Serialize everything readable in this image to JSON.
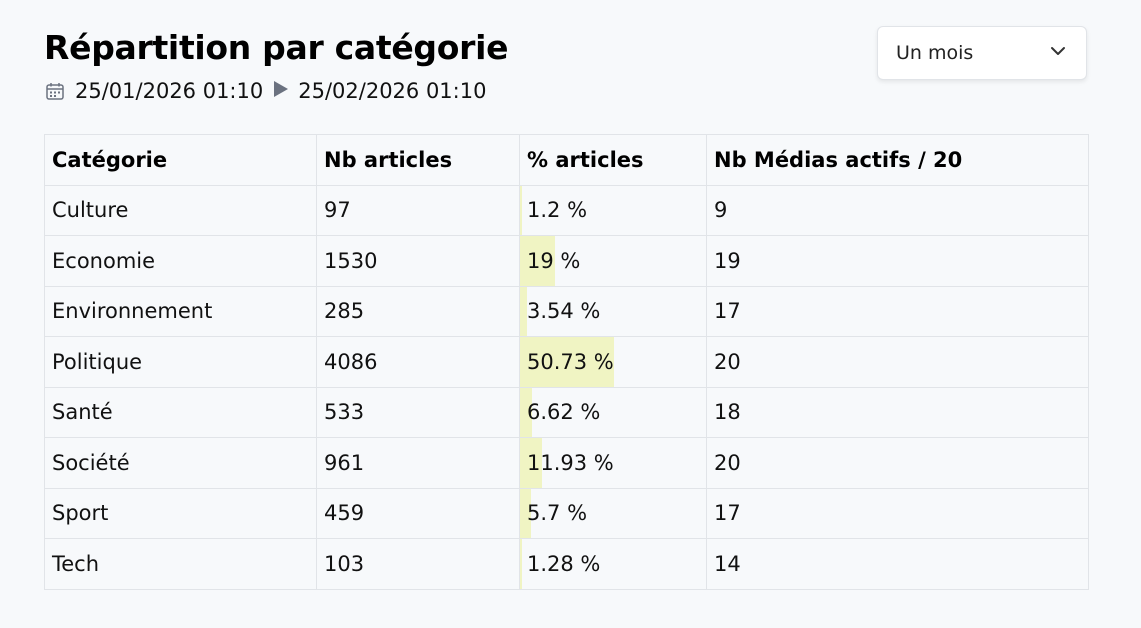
{
  "header": {
    "title": "Répartition par catégorie",
    "date_start": "25/01/2026 01:10",
    "date_end": "25/02/2026 01:10",
    "calendar_icon": "calendar-icon",
    "arrow_icon": "play-arrow-icon"
  },
  "period_select": {
    "value": "Un mois",
    "icon": "chevron-down-icon"
  },
  "table": {
    "columns": [
      "Catégorie",
      "Nb articles",
      "% articles",
      "Nb Médias actifs / 20"
    ],
    "bar_color": "#f0f4c3",
    "rows": [
      {
        "category": "Culture",
        "count": "97",
        "pct": 1.2,
        "pct_label": "1.2 %",
        "media": "9"
      },
      {
        "category": "Economie",
        "count": "1530",
        "pct": 19,
        "pct_label": "19 %",
        "media": "19"
      },
      {
        "category": "Environnement",
        "count": "285",
        "pct": 3.54,
        "pct_label": "3.54 %",
        "media": "17"
      },
      {
        "category": "Politique",
        "count": "4086",
        "pct": 50.73,
        "pct_label": "50.73 %",
        "media": "20"
      },
      {
        "category": "Santé",
        "count": "533",
        "pct": 6.62,
        "pct_label": "6.62 %",
        "media": "18"
      },
      {
        "category": "Société",
        "count": "961",
        "pct": 11.93,
        "pct_label": "11.93 %",
        "media": "20"
      },
      {
        "category": "Sport",
        "count": "459",
        "pct": 5.7,
        "pct_label": "5.7 %",
        "media": "17"
      },
      {
        "category": "Tech",
        "count": "103",
        "pct": 1.28,
        "pct_label": "1.28 %",
        "media": "14"
      }
    ]
  }
}
